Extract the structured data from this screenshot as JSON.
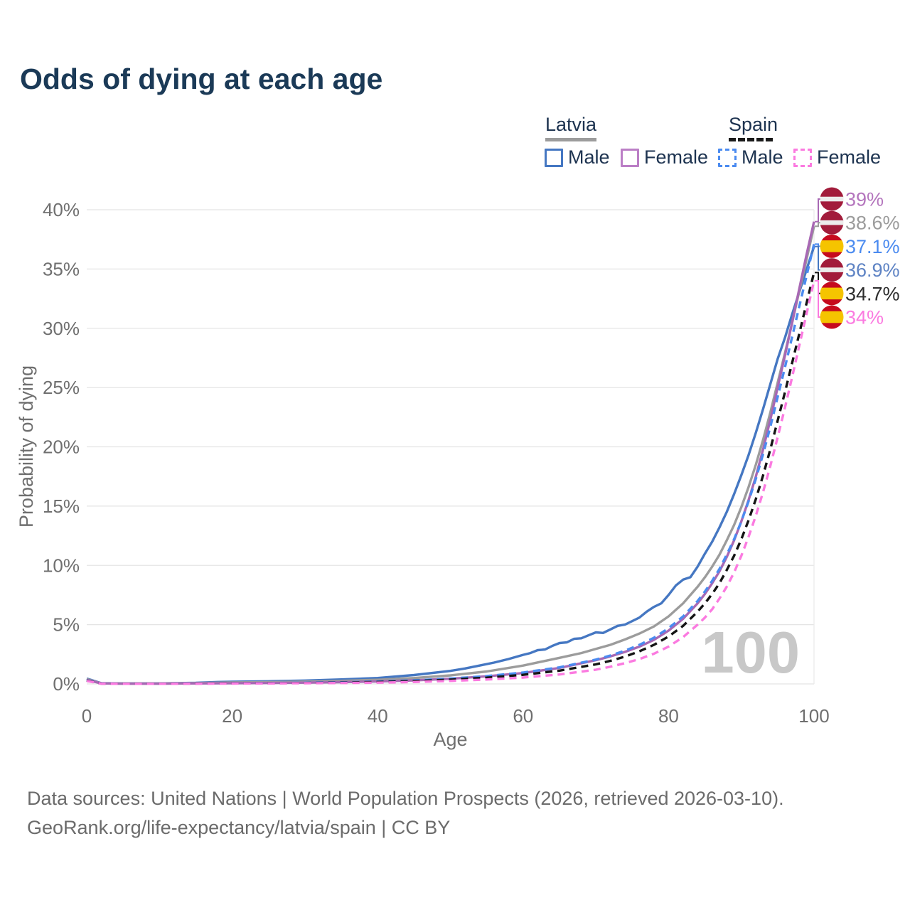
{
  "title": "Odds of dying at each age",
  "legend": {
    "groups": [
      {
        "label": "Latvia",
        "line_color": "#9c9c9c",
        "line_style": "solid"
      },
      {
        "label": "Spain",
        "line_color": "#1a1a1a",
        "line_style": "dashed"
      }
    ],
    "items": [
      {
        "country": "Latvia",
        "label": "Male",
        "color": "#4577c2",
        "style": "solid"
      },
      {
        "country": "Latvia",
        "label": "Female",
        "color": "#bb7ec6",
        "style": "solid"
      },
      {
        "country": "Spain",
        "label": "Male",
        "color": "#4b8bf0",
        "style": "dashed"
      },
      {
        "country": "Spain",
        "label": "Female",
        "color": "#fb7ae0",
        "style": "dashed"
      }
    ]
  },
  "footer": {
    "line1": "Data sources: United Nations | World Population Prospects (2026, retrieved 2026-03-10).",
    "line2": "GeoRank.org/life-expectancy/latvia/spain | CC BY"
  },
  "flags": {
    "latvia": [
      [
        "#a21c3b",
        0.4
      ],
      [
        "#ececec",
        0.2
      ],
      [
        "#a21c3b",
        0.4
      ]
    ],
    "spain": [
      [
        "#c60b1e",
        0.25
      ],
      [
        "#f5c400",
        0.5
      ],
      [
        "#c60b1e",
        0.25
      ]
    ]
  },
  "chart_data": {
    "type": "line",
    "title": "Odds of dying at each age",
    "xlabel": "Age",
    "ylabel": "Probability of dying",
    "xlim": [
      0,
      100
    ],
    "ylim": [
      0,
      40
    ],
    "x_ticks": [
      0,
      20,
      40,
      60,
      80,
      100
    ],
    "y_ticks": [
      [
        0,
        "0%"
      ],
      [
        5,
        "5%"
      ],
      [
        10,
        "10%"
      ],
      [
        15,
        "15%"
      ],
      [
        20,
        "20%"
      ],
      [
        25,
        "25%"
      ],
      [
        30,
        "30%"
      ],
      [
        35,
        "35%"
      ],
      [
        40,
        "40%"
      ]
    ],
    "grid": "horizontal",
    "legend_position": "top-right",
    "watermark": "100",
    "series": [
      {
        "id": "latvia-male",
        "name": "Latvia Male",
        "color": "#4577c2",
        "dash": null,
        "end_value_pct": 36.9,
        "points": [
          [
            0,
            0.45
          ],
          [
            2,
            0.06
          ],
          [
            5,
            0.04
          ],
          [
            10,
            0.04
          ],
          [
            15,
            0.09
          ],
          [
            18,
            0.16
          ],
          [
            20,
            0.18
          ],
          [
            25,
            0.22
          ],
          [
            30,
            0.28
          ],
          [
            35,
            0.38
          ],
          [
            40,
            0.5
          ],
          [
            45,
            0.75
          ],
          [
            50,
            1.1
          ],
          [
            52,
            1.3
          ],
          [
            54,
            1.55
          ],
          [
            56,
            1.8
          ],
          [
            58,
            2.1
          ],
          [
            60,
            2.45
          ],
          [
            61,
            2.6
          ],
          [
            62,
            2.85
          ],
          [
            63,
            2.9
          ],
          [
            64,
            3.2
          ],
          [
            65,
            3.45
          ],
          [
            66,
            3.5
          ],
          [
            67,
            3.8
          ],
          [
            68,
            3.85
          ],
          [
            69,
            4.1
          ],
          [
            70,
            4.35
          ],
          [
            71,
            4.3
          ],
          [
            72,
            4.6
          ],
          [
            73,
            4.9
          ],
          [
            74,
            5.0
          ],
          [
            75,
            5.3
          ],
          [
            76,
            5.6
          ],
          [
            77,
            6.1
          ],
          [
            78,
            6.5
          ],
          [
            79,
            6.8
          ],
          [
            80,
            7.5
          ],
          [
            81,
            8.3
          ],
          [
            82,
            8.8
          ],
          [
            83,
            9.0
          ],
          [
            84,
            9.9
          ],
          [
            85,
            11.0
          ],
          [
            86,
            12.0
          ],
          [
            87,
            13.2
          ],
          [
            88,
            14.5
          ],
          [
            89,
            16.0
          ],
          [
            90,
            17.6
          ],
          [
            91,
            19.3
          ],
          [
            92,
            21.2
          ],
          [
            93,
            23.2
          ],
          [
            94,
            25.3
          ],
          [
            95,
            27.4
          ],
          [
            96,
            29.2
          ],
          [
            97,
            31.2
          ],
          [
            98,
            33.1
          ],
          [
            99,
            35.0
          ],
          [
            100,
            36.9
          ]
        ]
      },
      {
        "id": "latvia-total",
        "name": "Latvia",
        "color": "#9c9c9c",
        "dash": null,
        "end_value_pct": 38.6,
        "points": [
          [
            0,
            0.4
          ],
          [
            2,
            0.05
          ],
          [
            5,
            0.03
          ],
          [
            10,
            0.03
          ],
          [
            15,
            0.07
          ],
          [
            20,
            0.12
          ],
          [
            25,
            0.15
          ],
          [
            30,
            0.2
          ],
          [
            35,
            0.26
          ],
          [
            40,
            0.35
          ],
          [
            45,
            0.5
          ],
          [
            50,
            0.72
          ],
          [
            55,
            1.05
          ],
          [
            60,
            1.55
          ],
          [
            65,
            2.2
          ],
          [
            68,
            2.6
          ],
          [
            70,
            2.95
          ],
          [
            72,
            3.3
          ],
          [
            74,
            3.75
          ],
          [
            76,
            4.25
          ],
          [
            78,
            4.85
          ],
          [
            80,
            5.7
          ],
          [
            82,
            6.8
          ],
          [
            84,
            8.2
          ],
          [
            85,
            9.0
          ],
          [
            86,
            9.9
          ],
          [
            87,
            10.9
          ],
          [
            88,
            12.1
          ],
          [
            89,
            13.4
          ],
          [
            90,
            14.9
          ],
          [
            91,
            16.6
          ],
          [
            92,
            18.5
          ],
          [
            93,
            20.6
          ],
          [
            94,
            22.9
          ],
          [
            95,
            25.4
          ],
          [
            96,
            27.9
          ],
          [
            97,
            30.5
          ],
          [
            98,
            33.2
          ],
          [
            99,
            35.9
          ],
          [
            100,
            38.6
          ]
        ]
      },
      {
        "id": "latvia-female",
        "name": "Latvia Female",
        "color": "#a868b4",
        "dash": null,
        "end_value_pct": 39.0,
        "points": [
          [
            0,
            0.35
          ],
          [
            2,
            0.04
          ],
          [
            5,
            0.02
          ],
          [
            10,
            0.02
          ],
          [
            15,
            0.04
          ],
          [
            20,
            0.06
          ],
          [
            25,
            0.08
          ],
          [
            30,
            0.11
          ],
          [
            35,
            0.15
          ],
          [
            40,
            0.21
          ],
          [
            45,
            0.3
          ],
          [
            50,
            0.44
          ],
          [
            55,
            0.64
          ],
          [
            60,
            0.92
          ],
          [
            65,
            1.35
          ],
          [
            70,
            2.0
          ],
          [
            72,
            2.32
          ],
          [
            74,
            2.7
          ],
          [
            76,
            3.15
          ],
          [
            78,
            3.72
          ],
          [
            80,
            4.5
          ],
          [
            82,
            5.5
          ],
          [
            84,
            6.8
          ],
          [
            85,
            7.6
          ],
          [
            86,
            8.5
          ],
          [
            87,
            9.5
          ],
          [
            88,
            10.7
          ],
          [
            89,
            12.1
          ],
          [
            90,
            13.7
          ],
          [
            91,
            15.5
          ],
          [
            92,
            17.5
          ],
          [
            93,
            19.8
          ],
          [
            94,
            22.3
          ],
          [
            95,
            25.0
          ],
          [
            96,
            27.7
          ],
          [
            97,
            30.5
          ],
          [
            98,
            33.4
          ],
          [
            99,
            36.3
          ],
          [
            100,
            39.0
          ]
        ]
      },
      {
        "id": "spain-male",
        "name": "Spain Male",
        "color": "#4b8bf0",
        "dash": "10 7",
        "end_value_pct": 37.1,
        "points": [
          [
            0,
            0.3
          ],
          [
            2,
            0.03
          ],
          [
            5,
            0.02
          ],
          [
            10,
            0.02
          ],
          [
            15,
            0.04
          ],
          [
            20,
            0.06
          ],
          [
            25,
            0.08
          ],
          [
            30,
            0.1
          ],
          [
            35,
            0.14
          ],
          [
            40,
            0.2
          ],
          [
            45,
            0.3
          ],
          [
            50,
            0.45
          ],
          [
            55,
            0.66
          ],
          [
            60,
            0.96
          ],
          [
            65,
            1.4
          ],
          [
            70,
            2.05
          ],
          [
            72,
            2.4
          ],
          [
            74,
            2.8
          ],
          [
            76,
            3.3
          ],
          [
            78,
            3.9
          ],
          [
            80,
            4.7
          ],
          [
            82,
            5.7
          ],
          [
            84,
            7.0
          ],
          [
            85,
            7.8
          ],
          [
            86,
            8.7
          ],
          [
            87,
            9.7
          ],
          [
            88,
            10.9
          ],
          [
            89,
            12.2
          ],
          [
            90,
            13.7
          ],
          [
            91,
            15.4
          ],
          [
            92,
            17.3
          ],
          [
            93,
            19.4
          ],
          [
            94,
            21.7
          ],
          [
            95,
            24.2
          ],
          [
            96,
            26.7
          ],
          [
            97,
            29.3
          ],
          [
            98,
            31.9
          ],
          [
            99,
            34.5
          ],
          [
            100,
            37.1
          ]
        ]
      },
      {
        "id": "spain-total",
        "name": "Spain",
        "color": "#141414",
        "dash": "10 7",
        "end_value_pct": 34.7,
        "points": [
          [
            0,
            0.28
          ],
          [
            2,
            0.025
          ],
          [
            5,
            0.015
          ],
          [
            10,
            0.015
          ],
          [
            15,
            0.03
          ],
          [
            20,
            0.05
          ],
          [
            25,
            0.06
          ],
          [
            30,
            0.08
          ],
          [
            35,
            0.11
          ],
          [
            40,
            0.16
          ],
          [
            45,
            0.24
          ],
          [
            50,
            0.36
          ],
          [
            55,
            0.53
          ],
          [
            60,
            0.77
          ],
          [
            65,
            1.12
          ],
          [
            70,
            1.65
          ],
          [
            72,
            1.95
          ],
          [
            74,
            2.3
          ],
          [
            76,
            2.75
          ],
          [
            78,
            3.3
          ],
          [
            80,
            4.0
          ],
          [
            82,
            4.9
          ],
          [
            84,
            6.1
          ],
          [
            85,
            6.8
          ],
          [
            86,
            7.6
          ],
          [
            87,
            8.5
          ],
          [
            88,
            9.6
          ],
          [
            89,
            10.8
          ],
          [
            90,
            12.2
          ],
          [
            91,
            13.8
          ],
          [
            92,
            15.6
          ],
          [
            93,
            17.6
          ],
          [
            94,
            19.8
          ],
          [
            95,
            22.2
          ],
          [
            96,
            24.6
          ],
          [
            97,
            27.1
          ],
          [
            98,
            29.6
          ],
          [
            99,
            32.2
          ],
          [
            100,
            34.7
          ]
        ]
      },
      {
        "id": "spain-female",
        "name": "Spain Female",
        "color": "#fb7ae0",
        "dash": "10 7",
        "end_value_pct": 34.0,
        "points": [
          [
            0,
            0.25
          ],
          [
            2,
            0.02
          ],
          [
            5,
            0.012
          ],
          [
            10,
            0.012
          ],
          [
            15,
            0.02
          ],
          [
            20,
            0.03
          ],
          [
            25,
            0.04
          ],
          [
            30,
            0.06
          ],
          [
            35,
            0.08
          ],
          [
            40,
            0.11
          ],
          [
            45,
            0.16
          ],
          [
            50,
            0.25
          ],
          [
            55,
            0.37
          ],
          [
            60,
            0.54
          ],
          [
            65,
            0.8
          ],
          [
            70,
            1.2
          ],
          [
            72,
            1.45
          ],
          [
            74,
            1.75
          ],
          [
            76,
            2.1
          ],
          [
            78,
            2.55
          ],
          [
            80,
            3.15
          ],
          [
            82,
            3.95
          ],
          [
            84,
            5.0
          ],
          [
            85,
            5.6
          ],
          [
            86,
            6.3
          ],
          [
            87,
            7.2
          ],
          [
            88,
            8.2
          ],
          [
            89,
            9.4
          ],
          [
            90,
            10.8
          ],
          [
            91,
            12.4
          ],
          [
            92,
            14.2
          ],
          [
            93,
            16.2
          ],
          [
            94,
            18.4
          ],
          [
            95,
            20.8
          ],
          [
            96,
            23.3
          ],
          [
            97,
            25.9
          ],
          [
            98,
            28.6
          ],
          [
            99,
            31.3
          ],
          [
            100,
            34.0
          ]
        ]
      }
    ],
    "end_labels": [
      {
        "text": "39%",
        "series": "latvia-female",
        "flag": "latvia",
        "color": "#b475bd"
      },
      {
        "text": "38.6%",
        "series": "latvia-total",
        "flag": "latvia",
        "color": "#9c9c9c"
      },
      {
        "text": "37.1%",
        "series": "spain-male",
        "flag": "spain",
        "color": "#4b8bf0"
      },
      {
        "text": "36.9%",
        "series": "latvia-male",
        "flag": "latvia",
        "color": "#5e83c4"
      },
      {
        "text": "34.7%",
        "series": "spain-total",
        "flag": "spain",
        "color": "#2d2d2d"
      },
      {
        "text": "34%",
        "series": "spain-female",
        "flag": "spain",
        "color": "#fb7ae0"
      }
    ]
  }
}
